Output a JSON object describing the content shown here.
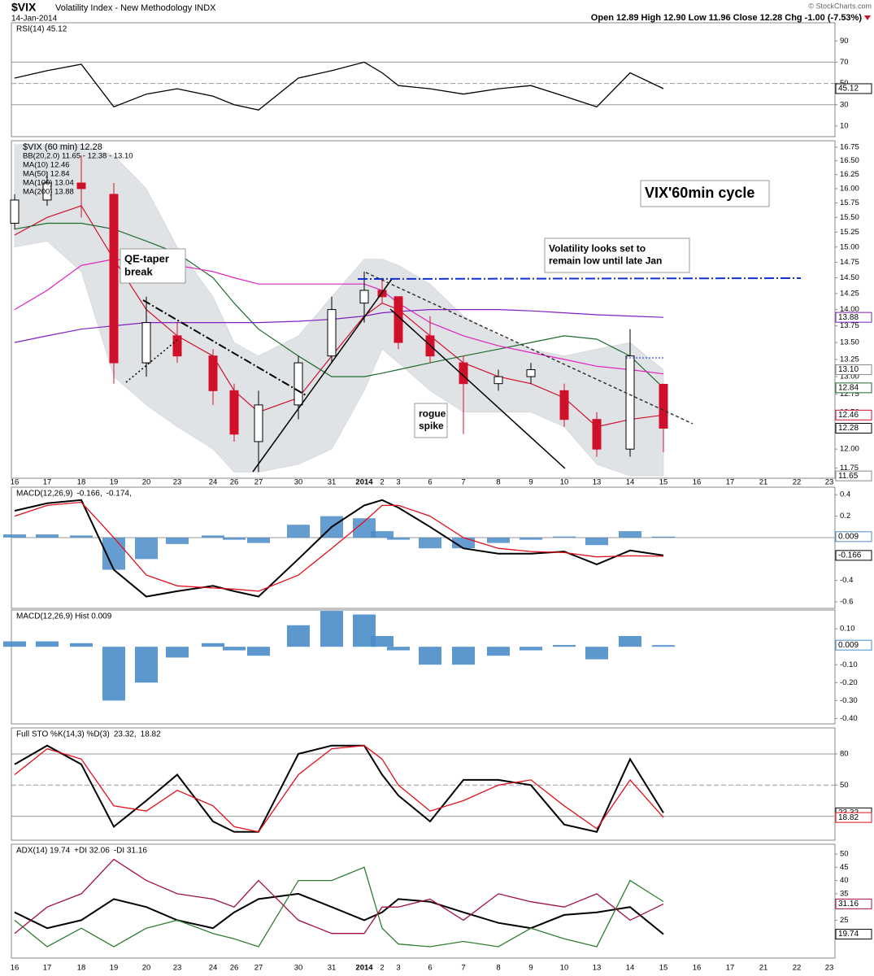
{
  "header": {
    "symbol": "$VIX",
    "name": "Volatility Index - New Methodology INDX",
    "date": "14-Jan-2014",
    "quote": "Open 12.89  High 12.90  Low 11.96  Close 12.28  Chg -1.00 (-7.53%)",
    "copyright": "© StockCharts.com"
  },
  "chart_data": [
    {
      "type": "line",
      "ylim": [
        0,
        107
      ],
      "yticks": [
        10,
        30,
        50,
        70,
        90
      ],
      "ref_lines": [
        30,
        50,
        70
      ],
      "series": [
        {
          "name": "RSI(14) 45.12",
          "color": "#000000",
          "values": [
            55,
            62,
            68,
            28,
            40,
            45,
            38,
            30,
            25,
            55,
            62,
            70,
            60,
            48,
            45,
            40,
            45,
            48,
            38,
            28,
            60,
            45.12
          ]
        }
      ],
      "badges": [
        {
          "value": 45.12,
          "color": "#000000"
        }
      ]
    },
    {
      "type": "candlestick",
      "title": "$VIX (60 min) 12.28",
      "log_scale": true,
      "ylim": [
        11.62,
        16.87
      ],
      "yticks": [
        16.75,
        {
          "value": 16.5,
          "label": "16.50"
        },
        16.25,
        {
          "value": 16,
          "label": "16.00"
        },
        15.75,
        {
          "value": 15.5,
          "label": "15.50"
        },
        15.25,
        {
          "value": 15,
          "label": "15.00"
        },
        14.75,
        {
          "value": 14.5,
          "label": "14.50"
        },
        14.25,
        {
          "value": 14,
          "label": "14.00"
        },
        13.75,
        {
          "value": 13.5,
          "label": "13.50"
        },
        13.25,
        {
          "value": 13,
          "label": "13.00"
        },
        12.75,
        {
          "value": 12.5,
          "label": "12.50"
        },
        12.25,
        {
          "value": 12,
          "label": "12.00"
        },
        11.75
      ],
      "categories": [
        "16",
        "17",
        "18",
        "19",
        "20",
        "23",
        "24",
        "26",
        "27",
        "30",
        "31",
        "2014",
        "2",
        "3",
        "6",
        "7",
        "8",
        "9",
        "10",
        "13",
        "14",
        "15",
        "16",
        "17",
        "21",
        "22",
        "23"
      ],
      "open": [
        15.4,
        15.8,
        16.1,
        15.9,
        13.2,
        13.6,
        13.3,
        12.8,
        12.1,
        12.6,
        13.3,
        14.1,
        14.3,
        14.2,
        13.6,
        13.2,
        12.9,
        13.0,
        12.8,
        12.4,
        12.0,
        12.89,
        null,
        null,
        null,
        null,
        null
      ],
      "high": [
        15.9,
        16.3,
        16.6,
        16.1,
        14.2,
        13.8,
        13.4,
        12.9,
        12.8,
        13.3,
        14.2,
        14.6,
        14.5,
        14.2,
        13.9,
        13.3,
        13.1,
        13.2,
        12.9,
        12.5,
        13.7,
        12.9,
        null,
        null,
        null,
        null,
        null
      ],
      "low": [
        15.3,
        15.7,
        15.5,
        12.9,
        13.0,
        13.2,
        12.6,
        12.1,
        11.7,
        12.4,
        13.2,
        13.8,
        14.1,
        13.4,
        13.2,
        12.2,
        12.8,
        12.9,
        12.3,
        11.9,
        11.9,
        11.96,
        null,
        null,
        null,
        null,
        null
      ],
      "close": [
        15.8,
        16.1,
        16.0,
        13.2,
        13.8,
        13.3,
        12.8,
        12.2,
        12.6,
        13.2,
        14.0,
        14.3,
        14.2,
        13.5,
        13.3,
        12.9,
        13.0,
        13.1,
        12.4,
        12.0,
        13.3,
        12.28,
        null,
        null,
        null,
        null,
        null
      ],
      "bands": {
        "name": "BB(20,2.0) 11.65 - 12.38 - 13.10",
        "color": "#c8cdd0",
        "upper": [
          16.8,
          16.8,
          16.8,
          16.6,
          16.0,
          15.0,
          14.2,
          13.5,
          13.3,
          13.6,
          14.2,
          14.8,
          14.8,
          14.7,
          14.4,
          13.9,
          13.6,
          13.4,
          13.3,
          13.4,
          13.5,
          13.1,
          null,
          null,
          null,
          null,
          null
        ],
        "lower": [
          15.0,
          15.1,
          14.6,
          13.0,
          12.6,
          12.3,
          12.0,
          11.7,
          11.7,
          11.8,
          12.0,
          12.8,
          13.4,
          13.2,
          12.8,
          12.5,
          12.5,
          12.5,
          12.3,
          11.8,
          11.65,
          11.65,
          null,
          null,
          null,
          null,
          null
        ]
      },
      "series": [
        {
          "name": "MA(10) 12.46",
          "color": "#d0102a",
          "values": [
            15.2,
            15.5,
            15.7,
            14.8,
            14.0,
            13.6,
            13.3,
            12.8,
            12.5,
            12.7,
            13.3,
            13.9,
            14.1,
            14.0,
            13.6,
            13.2,
            13.0,
            12.9,
            12.7,
            12.3,
            12.4,
            12.46,
            null,
            null,
            null,
            null,
            null
          ]
        },
        {
          "name": "MA(50) 12.84",
          "color": "#1e6b2e",
          "values": [
            15.3,
            15.4,
            15.4,
            15.3,
            15.1,
            14.9,
            14.5,
            14.1,
            13.7,
            13.3,
            13.0,
            13.0,
            13.05,
            13.1,
            13.2,
            13.3,
            13.4,
            13.5,
            13.6,
            13.55,
            13.3,
            12.84,
            null,
            null,
            null,
            null,
            null
          ]
        },
        {
          "name": "MA(100) 13.04",
          "color": "#e020c0",
          "values": [
            14.0,
            14.3,
            14.7,
            14.8,
            14.75,
            14.7,
            14.6,
            14.5,
            14.4,
            14.4,
            14.4,
            14.4,
            14.3,
            14.1,
            13.8,
            13.6,
            13.45,
            13.35,
            13.25,
            13.15,
            13.1,
            13.04,
            null,
            null,
            null,
            null,
            null
          ]
        },
        {
          "name": "MA(200) 13.88",
          "color": "#8020c0",
          "values": [
            13.5,
            13.6,
            13.7,
            13.75,
            13.8,
            13.8,
            13.8,
            13.8,
            13.8,
            13.82,
            13.85,
            13.9,
            13.95,
            13.97,
            14.0,
            14.0,
            14.0,
            13.98,
            13.95,
            13.92,
            13.9,
            13.88,
            null,
            null,
            null,
            null,
            null
          ]
        }
      ],
      "badges": [
        {
          "value": 13.88,
          "color": "#8020c0"
        },
        {
          "value": 13.1,
          "label": "13.10",
          "color": "#888888"
        },
        {
          "value": 12.84,
          "color": "#1e6b2e"
        },
        {
          "value": 12.46,
          "color": "#d0102a"
        },
        {
          "value": 12.28,
          "color": "#000000"
        },
        {
          "value": 11.65,
          "color": "#888888"
        }
      ],
      "annotations": [
        {
          "lines": [
            "VIX'60min cycle"
          ]
        },
        {
          "lines": [
            "Volatility looks set to",
            "remain low until late Jan"
          ]
        },
        {
          "lines": [
            "QE-taper",
            "break"
          ]
        },
        {
          "lines": [
            "rogue",
            "spike"
          ]
        }
      ]
    },
    {
      "type": "line",
      "title": "MACD(12,26,9)",
      "ylim": [
        -0.66,
        0.47
      ],
      "yticks": [
        -0.6,
        -0.4,
        0.2,
        0.4
      ],
      "ref_lines": [
        0
      ],
      "series": [
        {
          "name": "-0.166,",
          "color": "#000000",
          "values": [
            0.25,
            0.32,
            0.35,
            -0.3,
            -0.55,
            -0.5,
            -0.45,
            -0.5,
            -0.55,
            -0.2,
            0.1,
            0.3,
            0.35,
            0.28,
            0.1,
            -0.1,
            -0.15,
            -0.15,
            -0.13,
            -0.25,
            -0.12,
            -0.166
          ]
        },
        {
          "name": "-0.174,",
          "color": "#e0101a",
          "values": [
            0.2,
            0.3,
            0.33,
            0.0,
            -0.35,
            -0.45,
            -0.47,
            -0.48,
            -0.5,
            -0.35,
            -0.1,
            0.15,
            0.3,
            0.3,
            0.2,
            0.0,
            -0.1,
            -0.13,
            -0.14,
            -0.18,
            -0.17,
            -0.174
          ]
        }
      ],
      "badges": [
        {
          "value": 0.009,
          "color": "#4a8cc9"
        },
        {
          "value": -0.166,
          "color": "#000000"
        }
      ]
    },
    {
      "type": "bar",
      "title": "MACD(12,26,9) Hist 0.009",
      "color": "#4a8cc9",
      "ylim": [
        -0.43,
        0.205
      ],
      "yticks": [
        {
          "value": 0.1,
          "label": "0.10"
        },
        {
          "value": -0.1,
          "label": "-0.10"
        },
        {
          "value": -0.2,
          "label": "-0.20"
        },
        {
          "value": -0.3,
          "label": "-0.30"
        },
        {
          "value": -0.4,
          "label": "-0.40"
        }
      ],
      "values": [
        0.03,
        0.03,
        0.02,
        -0.3,
        -0.2,
        -0.06,
        0.02,
        -0.02,
        -0.05,
        0.12,
        0.2,
        0.18,
        0.06,
        -0.02,
        -0.1,
        -0.1,
        -0.05,
        -0.02,
        0.01,
        -0.07,
        0.06,
        0.009
      ],
      "badges": [
        {
          "value": 0.009,
          "color": "#4a8cc9"
        }
      ]
    },
    {
      "type": "line",
      "title": "Full STO %K(14,3) %D(3)",
      "ylim": [
        -3,
        105
      ],
      "yticks": [
        20,
        50,
        80
      ],
      "ref_lines": [
        20,
        50,
        80
      ],
      "series": [
        {
          "name": "23.32,",
          "color": "#000000",
          "values": [
            70,
            88,
            70,
            10,
            35,
            60,
            15,
            5,
            5,
            80,
            88,
            88,
            60,
            40,
            15,
            55,
            55,
            50,
            12,
            5,
            75,
            23.32
          ]
        },
        {
          "name": "18.82",
          "color": "#e0101a",
          "values": [
            60,
            85,
            75,
            30,
            25,
            45,
            30,
            10,
            5,
            60,
            85,
            88,
            75,
            50,
            25,
            35,
            50,
            55,
            30,
            8,
            55,
            18.82
          ]
        }
      ],
      "badges": [
        {
          "value": 23.32,
          "color": "#000000"
        },
        {
          "value": 18.82,
          "color": "#e0101a"
        }
      ]
    },
    {
      "type": "line",
      "ylim": [
        10.7,
        53.7
      ],
      "yticks": [
        20,
        25,
        30,
        35,
        40,
        45,
        50
      ],
      "categories": [
        "16",
        "17",
        "18",
        "19",
        "20",
        "23",
        "24",
        "26",
        "27",
        "30",
        "31",
        "2014",
        "2",
        "3",
        "6",
        "7",
        "8",
        "9",
        "10",
        "13",
        "14",
        "15",
        "16",
        "17",
        "21",
        "22",
        "23"
      ],
      "series": [
        {
          "name": "ADX(14) 19.74",
          "color": "#000000",
          "values": [
            28,
            22,
            25,
            33,
            30,
            25,
            22,
            28,
            33,
            35,
            30,
            25,
            28,
            33,
            32,
            28,
            24,
            22,
            27,
            28,
            30,
            19.74,
            null,
            null,
            null,
            null,
            null
          ]
        },
        {
          "name": "+DI 32.06",
          "color": "#2e7d32",
          "values": [
            25,
            15,
            22,
            15,
            22,
            25,
            20,
            18,
            15,
            40,
            40,
            45,
            22,
            16,
            15,
            17,
            15,
            22,
            18,
            15,
            40,
            32.06,
            null,
            null,
            null,
            null,
            null
          ]
        },
        {
          "name": "-DI 31.16",
          "color": "#a01040",
          "values": [
            20,
            30,
            35,
            48,
            40,
            35,
            33,
            30,
            40,
            25,
            20,
            20,
            30,
            30,
            33,
            25,
            35,
            32,
            30,
            35,
            25,
            31.16,
            null,
            null,
            null,
            null,
            null
          ]
        }
      ],
      "badges": [
        {
          "value": 31.16,
          "color": "#a01040"
        },
        {
          "value": 19.74,
          "color": "#000000"
        }
      ]
    }
  ]
}
